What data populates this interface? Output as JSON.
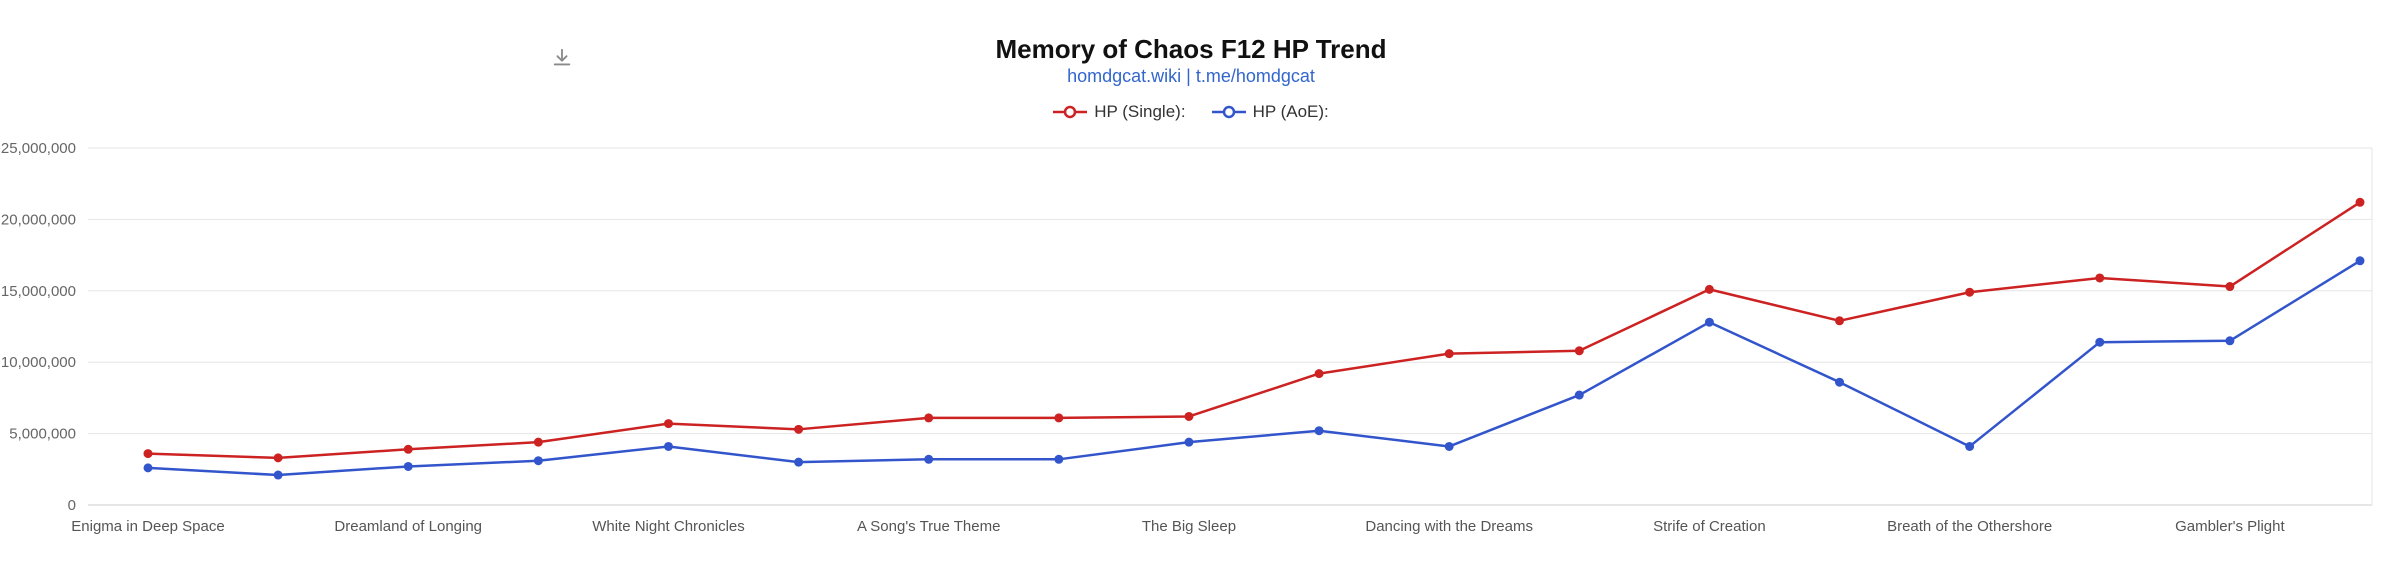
{
  "header": {
    "title": "Memory of Chaos F12 HP Trend",
    "subtitle": "homdgcat.wiki | t.me/homdgcat"
  },
  "icons": {
    "export": "download-icon"
  },
  "chart_data": {
    "type": "line",
    "title": "Memory of Chaos F12 HP Trend",
    "subtitle": "homdgcat.wiki | t.me/homdgcat",
    "x_labels": [
      "Enigma in Deep Space",
      "Dreamland of Longing",
      "White Night Chronicles",
      "A Song's True Theme",
      "The Big Sleep",
      "Dancing with the Dreams",
      "Strife of Creation",
      "Breath of the Othershore",
      "Gambler's Plight"
    ],
    "x_labels_note": "labels shown under every second data point (indices 0,2,4,...,16)",
    "series": [
      {
        "name": "HP (Single):",
        "color": "#cc2222",
        "values": [
          3600000,
          3300000,
          3900000,
          4400000,
          5700000,
          5300000,
          6100000,
          6100000,
          6200000,
          9200000,
          10600000,
          10800000,
          15100000,
          12900000,
          14900000,
          15900000,
          15300000,
          21200000
        ]
      },
      {
        "name": "HP (AoE):",
        "color": "#3355cc",
        "values": [
          2600000,
          2100000,
          2700000,
          3100000,
          4100000,
          3000000,
          3200000,
          3200000,
          4400000,
          5200000,
          4100000,
          7700000,
          12800000,
          8600000,
          4100000,
          11400000,
          11500000,
          17100000
        ]
      }
    ],
    "y_ticks": [
      "0",
      "5,000,000",
      "10,000,000",
      "15,000,000",
      "20,000,000",
      "25,000,000"
    ],
    "ylim": [
      0,
      25000000
    ],
    "grid": true,
    "legend_position": "top"
  },
  "colors": {
    "grid": "#e6e6e6",
    "axis": "#cccccc",
    "y_label": "#666666",
    "x_label": "#555555"
  }
}
